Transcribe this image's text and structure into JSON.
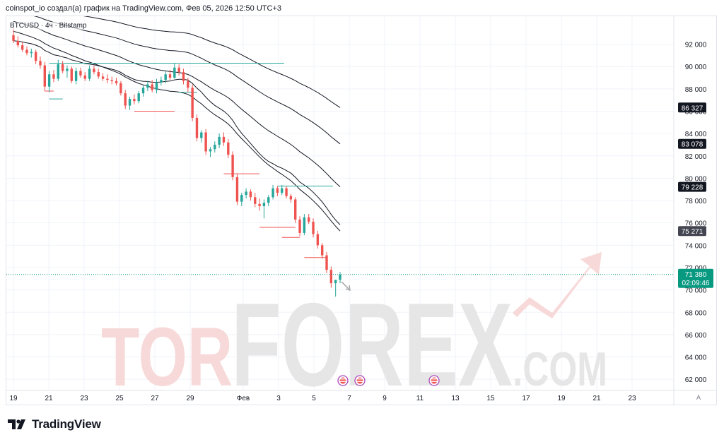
{
  "header": {
    "attribution": "coinspot_io создал(а) график на TradingView.com, Фев 05, 2026 12:50 UTC+3"
  },
  "symbol": {
    "label": "BTCUSD · 4ч · Bitstamp"
  },
  "footer": {
    "brand": "TradingView",
    "auto_button": "A"
  },
  "watermark": {
    "text_tor": "TOR",
    "text_forex": "FOREX",
    "text_com": ".COM"
  },
  "colors": {
    "up": "#26a69a",
    "down": "#ef5350",
    "grid": "#f0f3fa",
    "ma": "#131722",
    "price_tag": "#089981",
    "ma_tag": "#131722",
    "ma_tag_last": "#434651"
  },
  "chart_data": {
    "type": "candlestick",
    "symbol": "BTCUSD",
    "timeframe": "4ч",
    "exchange": "Bitstamp",
    "ylim": [
      61000,
      94500
    ],
    "y_ticks": [
      62000,
      64000,
      66000,
      68000,
      70000,
      72000,
      74000,
      76000,
      78000,
      80000,
      82000,
      84000,
      86000,
      88000,
      90000,
      92000
    ],
    "y_tick_labels": [
      "62 000",
      "64 000",
      "66 000",
      "68 000",
      "70 000",
      "72 000",
      "74 000",
      "76 000",
      "78 000",
      "80 000",
      "82 000",
      "84 000",
      "86 000",
      "88 000",
      "90 000",
      "92 000"
    ],
    "x_ticks": [
      {
        "label": "19",
        "day": 19
      },
      {
        "label": "21",
        "day": 21
      },
      {
        "label": "23",
        "day": 23
      },
      {
        "label": "25",
        "day": 25
      },
      {
        "label": "27",
        "day": 27
      },
      {
        "label": "29",
        "day": 29
      },
      {
        "label": "Фев",
        "day": 32
      },
      {
        "label": "3",
        "day": 34
      },
      {
        "label": "5",
        "day": 36
      },
      {
        "label": "7",
        "day": 38
      },
      {
        "label": "9",
        "day": 40
      },
      {
        "label": "11",
        "day": 42
      },
      {
        "label": "13",
        "day": 44
      },
      {
        "label": "15",
        "day": 46
      },
      {
        "label": "17",
        "day": 48
      },
      {
        "label": "19",
        "day": 50
      },
      {
        "label": "21",
        "day": 52
      },
      {
        "label": "23",
        "day": 54
      }
    ],
    "x_domain": [
      19,
      56.6
    ],
    "current_price": 71380,
    "price_tag": {
      "price": "71 380",
      "countdown": "02:09:46"
    },
    "ma_tags": [
      {
        "label": "86 327",
        "value": 86327
      },
      {
        "label": "83 078",
        "value": 83078
      },
      {
        "label": "79 228",
        "value": 79228
      },
      {
        "label": "75 271",
        "value": 75271
      }
    ],
    "candles": [
      [
        92800,
        93400,
        92100,
        92300
      ],
      [
        92300,
        92700,
        91700,
        91900
      ],
      [
        91900,
        92200,
        91300,
        91500
      ],
      [
        91500,
        91800,
        91000,
        91200
      ],
      [
        91200,
        91600,
        90800,
        91300
      ],
      [
        91300,
        91500,
        90200,
        90500
      ],
      [
        90500,
        90900,
        89800,
        90100
      ],
      [
        90100,
        90400,
        87800,
        88200
      ],
      [
        88200,
        89600,
        87700,
        89300
      ],
      [
        89300,
        89700,
        88600,
        88900
      ],
      [
        88900,
        90600,
        88700,
        90200
      ],
      [
        90200,
        90500,
        89400,
        89600
      ],
      [
        89600,
        90100,
        89000,
        89800
      ],
      [
        89800,
        90000,
        88500,
        88700
      ],
      [
        88700,
        89900,
        88400,
        89600
      ],
      [
        89600,
        89900,
        89000,
        89200
      ],
      [
        89200,
        89500,
        88700,
        88900
      ],
      [
        88900,
        90100,
        88700,
        89800
      ],
      [
        89800,
        90100,
        89300,
        89500
      ],
      [
        89500,
        89800,
        88900,
        89100
      ],
      [
        89100,
        89400,
        88700,
        88900
      ],
      [
        88900,
        89300,
        88500,
        88800
      ],
      [
        88800,
        89100,
        88400,
        88700
      ],
      [
        88700,
        89000,
        88300,
        88500
      ],
      [
        88500,
        88700,
        87400,
        87600
      ],
      [
        87600,
        87900,
        86200,
        86500
      ],
      [
        86500,
        87300,
        86100,
        87100
      ],
      [
        87100,
        87500,
        86600,
        86900
      ],
      [
        86900,
        87800,
        86700,
        87600
      ],
      [
        87600,
        88300,
        87300,
        88100
      ],
      [
        88100,
        88700,
        87800,
        88400
      ],
      [
        88400,
        88800,
        87700,
        87900
      ],
      [
        87900,
        88900,
        87600,
        88600
      ],
      [
        88600,
        89100,
        88300,
        88800
      ],
      [
        88800,
        89600,
        88500,
        89300
      ],
      [
        89300,
        89700,
        88800,
        89000
      ],
      [
        89000,
        90300,
        88900,
        89900
      ],
      [
        89900,
        90200,
        89200,
        89500
      ],
      [
        89500,
        89800,
        88400,
        88700
      ],
      [
        88700,
        89000,
        87700,
        88100
      ],
      [
        88100,
        88400,
        85100,
        85400
      ],
      [
        85400,
        85700,
        83300,
        83600
      ],
      [
        83600,
        84300,
        83200,
        84100
      ],
      [
        84100,
        84400,
        82100,
        82400
      ],
      [
        82400,
        82800,
        81900,
        82600
      ],
      [
        82600,
        83300,
        82300,
        83000
      ],
      [
        83000,
        84000,
        82700,
        83700
      ],
      [
        83700,
        84100,
        82900,
        83200
      ],
      [
        83200,
        83500,
        81800,
        82100
      ],
      [
        82100,
        82400,
        79800,
        80100
      ],
      [
        80100,
        80400,
        77600,
        77900
      ],
      [
        77900,
        78700,
        77500,
        78500
      ],
      [
        78500,
        79100,
        78200,
        78800
      ],
      [
        78800,
        79000,
        78000,
        78300
      ],
      [
        78300,
        78700,
        77400,
        77700
      ],
      [
        77700,
        78200,
        77100,
        77500
      ],
      [
        77500,
        78100,
        76400,
        77800
      ],
      [
        77800,
        78500,
        77500,
        78300
      ],
      [
        78300,
        79400,
        78100,
        79100
      ],
      [
        79100,
        79300,
        78400,
        78700
      ],
      [
        78700,
        79400,
        78500,
        79100
      ],
      [
        79100,
        79300,
        78200,
        78400
      ],
      [
        78400,
        78600,
        77800,
        78100
      ],
      [
        78100,
        78300,
        76000,
        76300
      ],
      [
        76300,
        76600,
        74800,
        75100
      ],
      [
        75100,
        76800,
        74900,
        76500
      ],
      [
        76500,
        76800,
        75900,
        76100
      ],
      [
        76100,
        76400,
        74700,
        75000
      ],
      [
        75000,
        75300,
        73700,
        74000
      ],
      [
        74000,
        74200,
        72800,
        73100
      ],
      [
        73100,
        73400,
        71500,
        71800
      ],
      [
        71800,
        72100,
        70200,
        70600
      ],
      [
        70600,
        70900,
        69400,
        70900
      ],
      [
        70900,
        71600,
        70600,
        71380
      ]
    ]
  }
}
